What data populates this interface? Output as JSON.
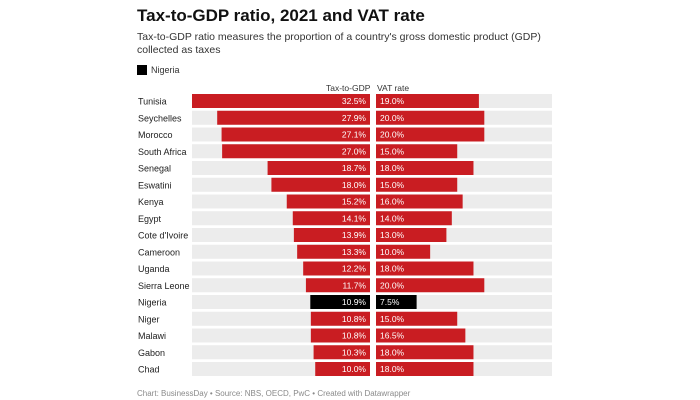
{
  "title": "Tax-to-GDP ratio, 2021 and VAT rate",
  "subtitle": "Tax-to-GDP ratio measures the proportion of a country's gross domestic product (GDP) collected as taxes",
  "legend": {
    "label": "Nigeria",
    "color": "#000000"
  },
  "colors": {
    "bar": "#c91d22",
    "highlight": "#000000",
    "track": "#ececec"
  },
  "footer": "Chart: BusinessDay • Source: NBS, OECD, PwC • Created with Datawrapper",
  "chart_data": {
    "type": "bar",
    "title": "Tax-to-GDP ratio, 2021 and VAT rate",
    "categories": [
      "Tunisia",
      "Seychelles",
      "Morocco",
      "South Africa",
      "Senegal",
      "Eswatini",
      "Kenya",
      "Egypt",
      "Cote d'Ivoire",
      "Cameroon",
      "Uganda",
      "Sierra Leone",
      "Nigeria",
      "Niger",
      "Malawi",
      "Gabon",
      "Chad"
    ],
    "highlight": "Nigeria",
    "series": [
      {
        "name": "Tax-to-GDP",
        "values": [
          32.5,
          27.9,
          27.1,
          27.0,
          18.7,
          18.0,
          15.2,
          14.1,
          13.9,
          13.3,
          12.2,
          11.7,
          10.9,
          10.8,
          10.8,
          10.3,
          10.0
        ],
        "labels": [
          "32.5%",
          "27.9%",
          "27.1%",
          "27.0%",
          "18.7%",
          "18.0%",
          "15.2%",
          "14.1%",
          "13.9%",
          "13.3%",
          "12.2%",
          "11.7%",
          "10.9%",
          "10.8%",
          "10.8%",
          "10.3%",
          "10.0%"
        ],
        "direction": "left",
        "max": 32.5
      },
      {
        "name": "VAT rate",
        "values": [
          19.0,
          20.0,
          20.0,
          15.0,
          18.0,
          15.0,
          16.0,
          14.0,
          13.0,
          10.0,
          18.0,
          20.0,
          7.5,
          15.0,
          16.5,
          18.0,
          18.0
        ],
        "labels": [
          "19.0%",
          "20.0%",
          "20.0%",
          "15.0%",
          "18.0%",
          "15.0%",
          "16.0%",
          "14.0%",
          "13.0%",
          "10.0%",
          "18.0%",
          "20.0%",
          "7.5%",
          "15.0%",
          "16.5%",
          "18.0%",
          "18.0%"
        ],
        "direction": "right",
        "max": 32.5
      }
    ]
  }
}
